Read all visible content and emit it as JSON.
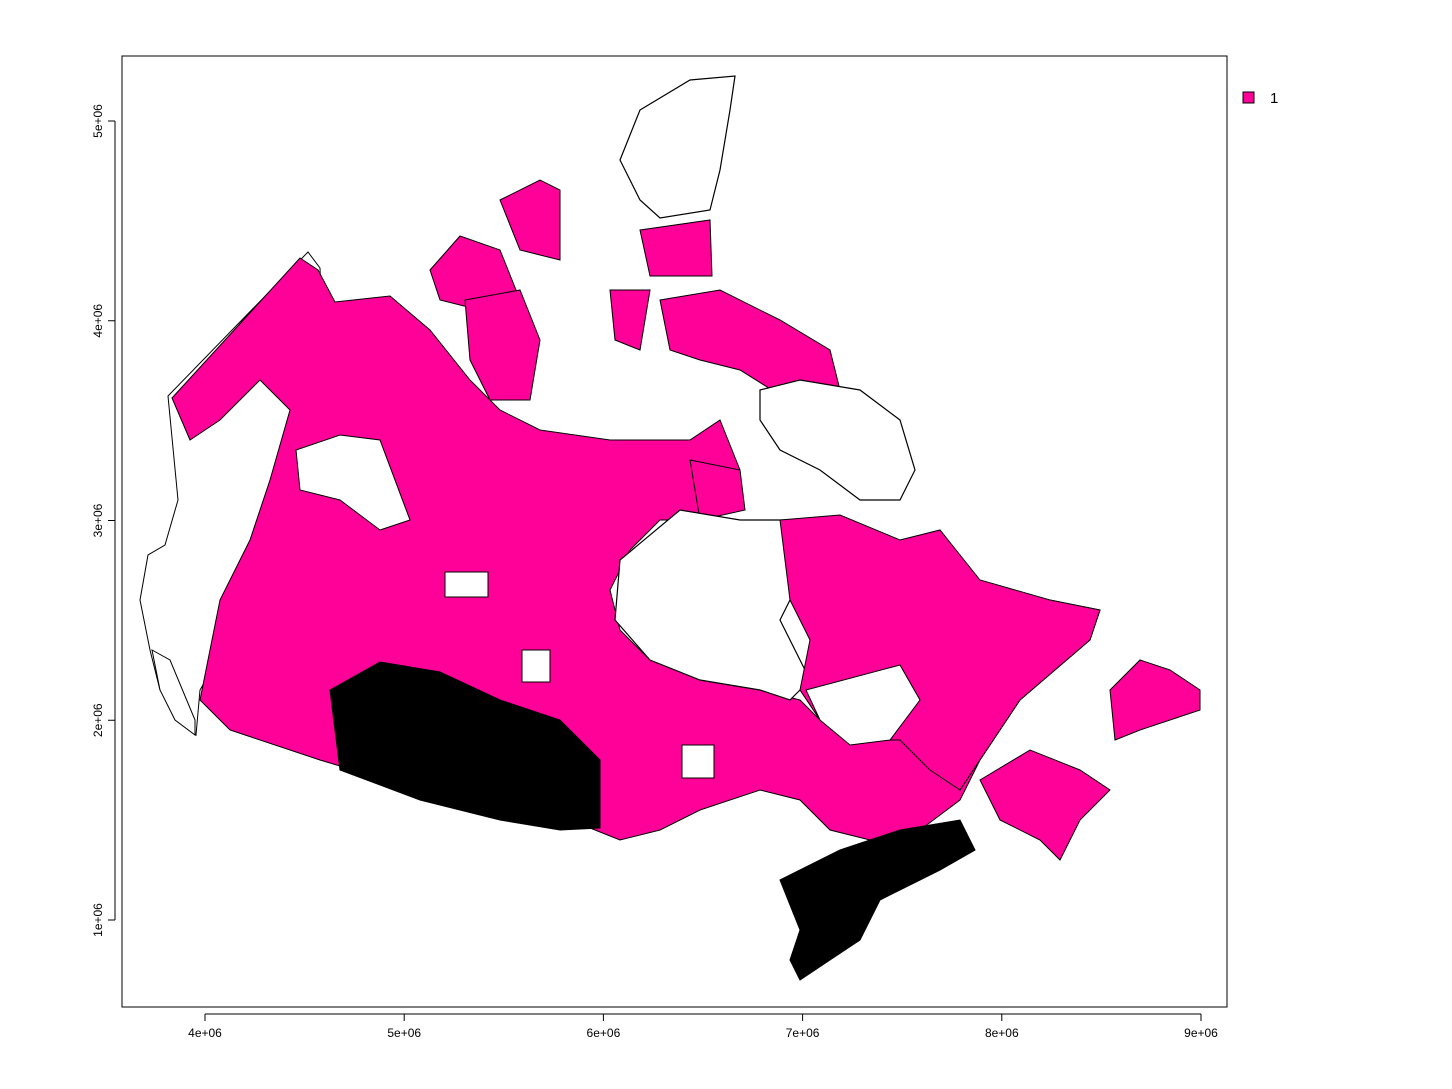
{
  "chart_data": {
    "type": "choropleth-map",
    "title": "",
    "xlabel": "",
    "ylabel": "",
    "xlim": [
      3600000,
      9120000
    ],
    "ylim": [
      440000,
      5330000
    ],
    "x_ticks": [
      {
        "value": 4000000,
        "label": "4e+06"
      },
      {
        "value": 5000000,
        "label": "5e+06"
      },
      {
        "value": 6000000,
        "label": "6e+06"
      },
      {
        "value": 7000000,
        "label": "7e+06"
      },
      {
        "value": 8000000,
        "label": "8e+06"
      },
      {
        "value": 9000000,
        "label": "9e+06"
      }
    ],
    "y_ticks": [
      {
        "value": 1000000,
        "label": "1e+06"
      },
      {
        "value": 2000000,
        "label": "2e+06"
      },
      {
        "value": 3000000,
        "label": "3e+06"
      },
      {
        "value": 4000000,
        "label": "4e+06"
      },
      {
        "value": 5000000,
        "label": "5e+06"
      }
    ],
    "legend": {
      "position": "top-right",
      "entries": [
        {
          "label": "1",
          "color": "#ff0099"
        }
      ]
    },
    "fill_color": "#ff0099",
    "border_color": "#000000",
    "grid": false
  }
}
